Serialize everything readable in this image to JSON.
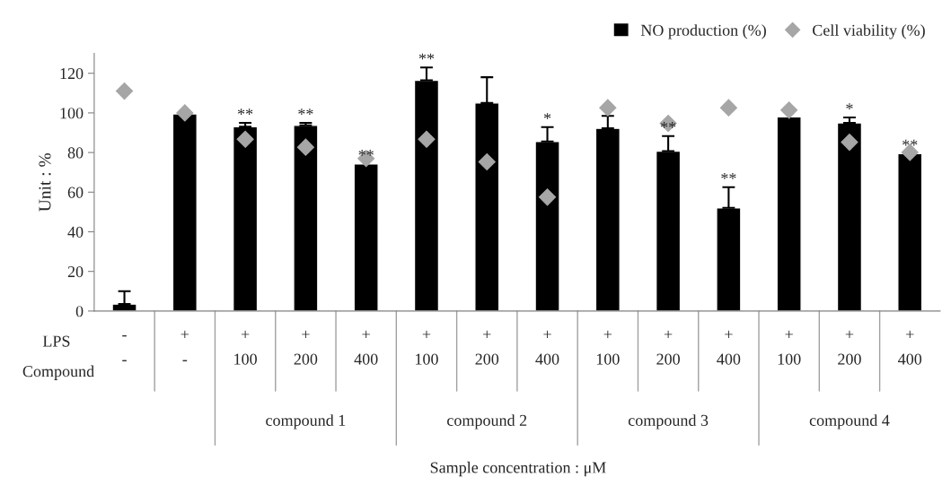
{
  "chart_data": {
    "type": "bar",
    "ylabel": "Unit : %",
    "categories": [
      "-\n-",
      "+\n-",
      "+\n100",
      "+\n200",
      "+\n400",
      "+\n100",
      "+\n200",
      "+\n400",
      "+\n100",
      "+\n200",
      "+\n400",
      "+\n100",
      "+\n200",
      "+\n400"
    ],
    "series": [
      {
        "name": "NO production (%)",
        "color": "#000000",
        "values": [
          3.5,
          99.5,
          93,
          93.7,
          74.3,
          116.5,
          105,
          85.6,
          92.2,
          80.7,
          52.1,
          98,
          95,
          79.4
        ],
        "errors": [
          [
            3.5,
            10
          ],
          null,
          [
            93,
            95
          ],
          [
            93.7,
            95
          ],
          null,
          [
            116.5,
            122.9
          ],
          [
            105,
            118
          ],
          [
            85.6,
            92.8
          ],
          [
            92.2,
            98.5
          ],
          [
            80.7,
            88.3
          ],
          [
            52.1,
            62.5
          ],
          null,
          [
            95,
            97.7
          ],
          null
        ],
        "value_labels": [
          null,
          null,
          "**",
          "**",
          "**",
          "**",
          null,
          "*",
          null,
          "**",
          "**",
          null,
          "*",
          "**"
        ]
      },
      {
        "name": "Cell viability (%)",
        "type": "scatter",
        "marker": "diamond",
        "color": "#a6a6a6",
        "values": [
          111,
          100,
          86.7,
          82.7,
          77,
          86.7,
          75.3,
          57.5,
          102.6,
          94.7,
          102.6,
          101.4,
          85.2,
          80.1
        ]
      }
    ],
    "annotations": [
      "LPS",
      "Compound",
      "compound 1",
      "compound 2",
      "compound 3",
      "compound 4",
      "Sample concentration : μM"
    ],
    "ylim": [
      0,
      130
    ],
    "yticks": [
      0,
      20,
      40,
      60,
      80,
      100,
      120
    ],
    "grid": false,
    "legend": "top right"
  }
}
